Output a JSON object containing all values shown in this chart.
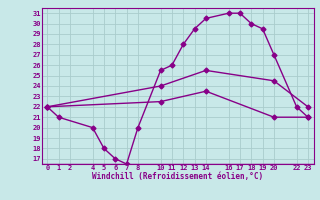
{
  "xlabel": "Windchill (Refroidissement éolien,°C)",
  "bg_color": "#c8e8e8",
  "line_color": "#880088",
  "grid_color": "#aacccc",
  "border_color": "#880088",
  "xlim": [
    -0.5,
    23.5
  ],
  "ylim": [
    16.5,
    31.5
  ],
  "xticks": [
    0,
    1,
    2,
    4,
    5,
    6,
    7,
    8,
    10,
    11,
    12,
    13,
    14,
    16,
    17,
    18,
    19,
    20,
    22,
    23
  ],
  "yticks": [
    17,
    18,
    19,
    20,
    21,
    22,
    23,
    24,
    25,
    26,
    27,
    28,
    29,
    30,
    31
  ],
  "line1_x": [
    0,
    1,
    4,
    5,
    6,
    7,
    8,
    10,
    11,
    12,
    13,
    14,
    16,
    17,
    18,
    19,
    20,
    22,
    23
  ],
  "line1_y": [
    22,
    21,
    20,
    18,
    17,
    16.5,
    20,
    25.5,
    26,
    28,
    29.5,
    30.5,
    31,
    31,
    30,
    29.5,
    27,
    22,
    21
  ],
  "line2_x": [
    0,
    10,
    14,
    20,
    23
  ],
  "line2_y": [
    22,
    24,
    25.5,
    24.5,
    22
  ],
  "line3_x": [
    0,
    10,
    14,
    20,
    23
  ],
  "line3_y": [
    22,
    22.5,
    23.5,
    21,
    21
  ],
  "marker": "D",
  "marker_size": 2.5,
  "linewidth": 1.0,
  "tick_fontsize": 5.0,
  "xlabel_fontsize": 5.5
}
